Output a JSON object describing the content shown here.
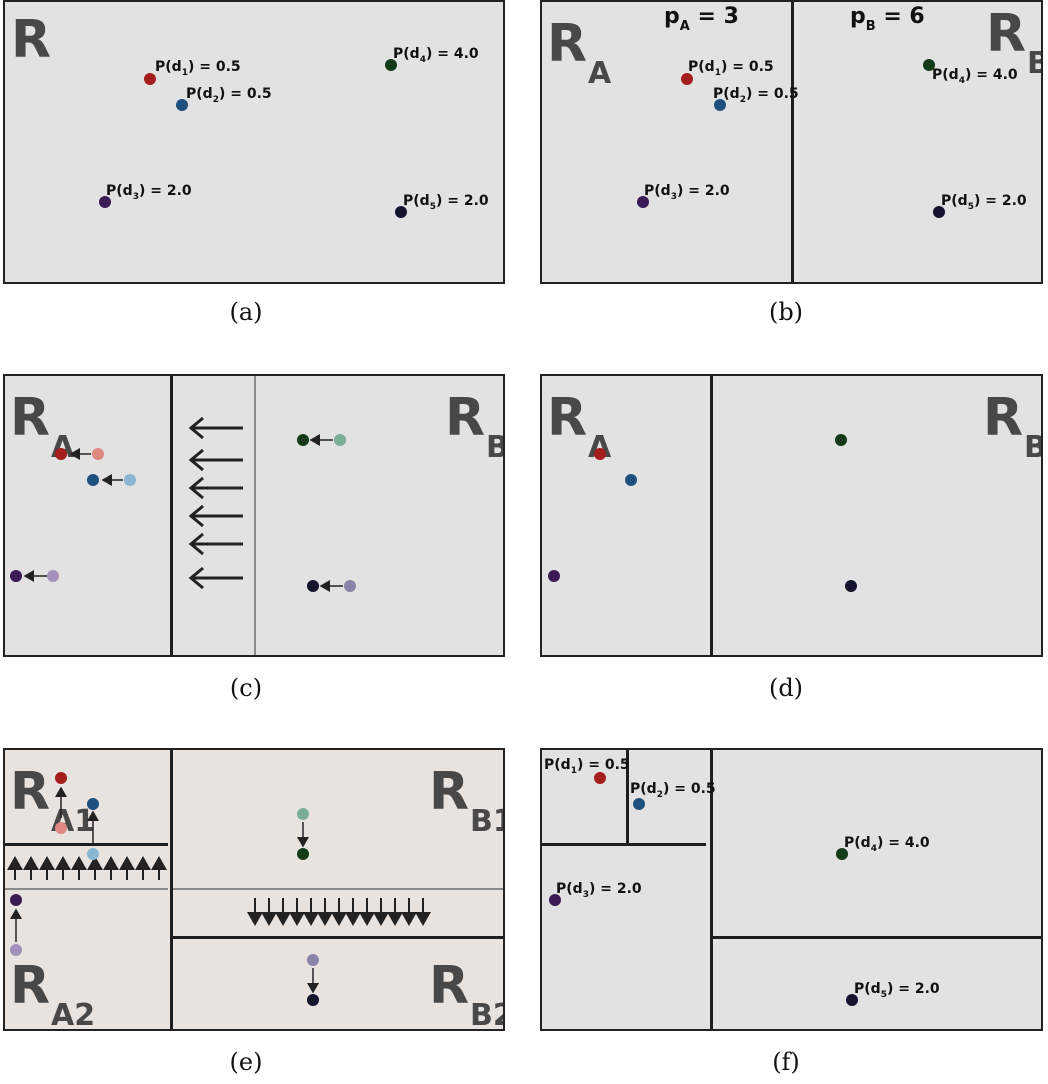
{
  "colors": {
    "panel_bg": "#e2e2e2",
    "panel_bg_e": "#e8e3df",
    "d1": "#a51d1d",
    "d1_faded": "#dd8880",
    "d2": "#1d4f7f",
    "d2_faded": "#88b6d3",
    "d3": "#3c1a55",
    "d3_faded": "#a391bc",
    "d4": "#143b18",
    "d4_faded": "#79ad96",
    "d5": "#14142e",
    "d5_faded": "#8a85a8",
    "line": "#1e1e1e",
    "mid_line": "#8a8a8a"
  },
  "captions": [
    "(a)",
    "(b)",
    "(c)",
    "(d)",
    "(e)",
    "(f)"
  ],
  "region_labels": {
    "R": {
      "main": "R",
      "sub": ""
    },
    "RA": {
      "main": "R",
      "sub": "A"
    },
    "RB": {
      "main": "R",
      "sub": "B"
    },
    "RA1": {
      "main": "R",
      "sub": "A1"
    },
    "RA2": {
      "main": "R",
      "sub": "A2"
    },
    "RB1": {
      "main": "R",
      "sub": "B1"
    },
    "RB2": {
      "main": "R",
      "sub": "B2"
    }
  },
  "populations": {
    "pA": {
      "pre": "p",
      "sub": "A",
      "post": " = 3"
    },
    "pB": {
      "pre": "p",
      "sub": "B",
      "post": " = 6"
    }
  },
  "points": {
    "d1": {
      "pre": "P(d",
      "sub": "1",
      "post": ") = 0.5"
    },
    "d2": {
      "pre": "P(d",
      "sub": "2",
      "post": ") = 0.5"
    },
    "d3": {
      "pre": "P(d",
      "sub": "3",
      "post": ") = 2.0"
    },
    "d4": {
      "pre": "P(d",
      "sub": "4",
      "post": ") = 4.0"
    },
    "d5": {
      "pre": "P(d",
      "sub": "5",
      "post": ") = 2.0"
    }
  }
}
